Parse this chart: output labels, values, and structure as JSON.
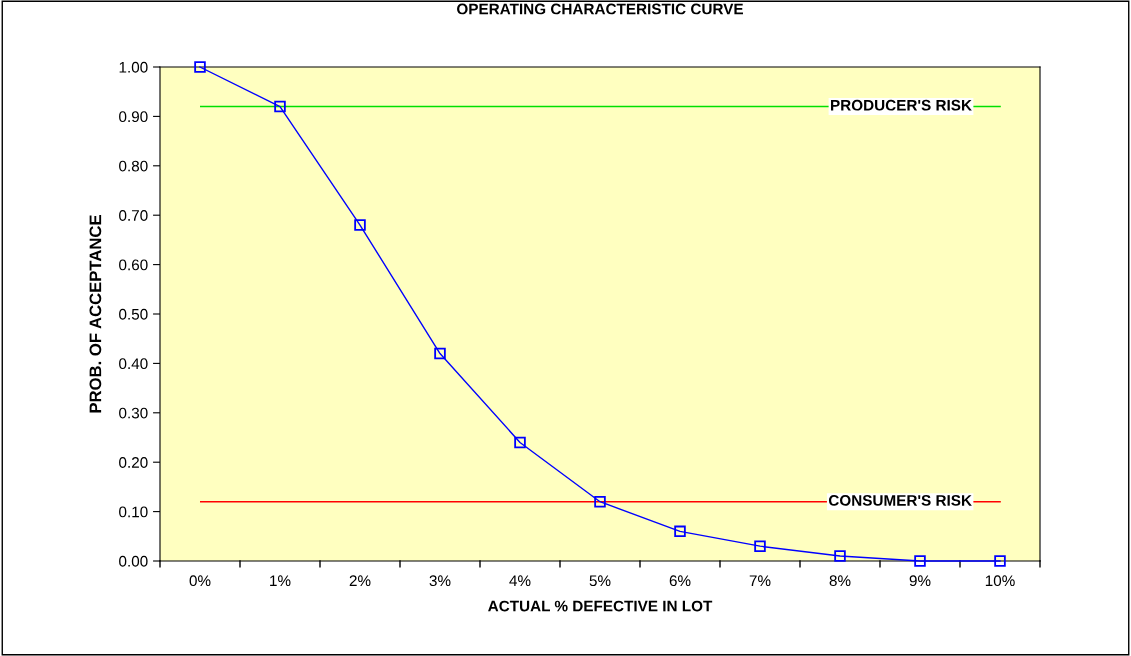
{
  "chart_data": {
    "type": "line",
    "title": "OPERATING CHARACTERISTIC CURVE",
    "xlabel": "ACTUAL % DEFECTIVE IN LOT",
    "ylabel": "PROB. OF ACCEPTANCE",
    "categories": [
      "0%",
      "1%",
      "2%",
      "3%",
      "4%",
      "5%",
      "6%",
      "7%",
      "8%",
      "9%",
      "10%"
    ],
    "series": [
      {
        "color": "#0000ff",
        "values": [
          1.0,
          0.92,
          0.68,
          0.42,
          0.24,
          0.12,
          0.06,
          0.03,
          0.01,
          0.0,
          0.0
        ]
      }
    ],
    "ylim": [
      0,
      1
    ],
    "yticks": [
      {
        "value": 0,
        "label": "0.00"
      },
      {
        "value": 0.1,
        "label": "0.10"
      },
      {
        "value": 0.2,
        "label": "0.20"
      },
      {
        "value": 0.3,
        "label": "0.30"
      },
      {
        "value": 0.4,
        "label": "0.40"
      },
      {
        "value": 0.5,
        "label": "0.50"
      },
      {
        "value": 0.6,
        "label": "0.60"
      },
      {
        "value": 0.7,
        "label": "0.70"
      },
      {
        "value": 0.8,
        "label": "0.80"
      },
      {
        "value": 0.9,
        "label": "0.90"
      },
      {
        "value": 1,
        "label": "1.00"
      }
    ],
    "ref_lines": [
      {
        "axis": "y",
        "value": 0.92,
        "label": "PRODUCER'S RISK",
        "color": "#00e000"
      },
      {
        "axis": "y",
        "value": 0.12,
        "label": "CONSUMER'S RISK",
        "color": "#ff0000"
      }
    ],
    "marker": "square",
    "line_style": "solid",
    "grid": false,
    "legend": false
  }
}
